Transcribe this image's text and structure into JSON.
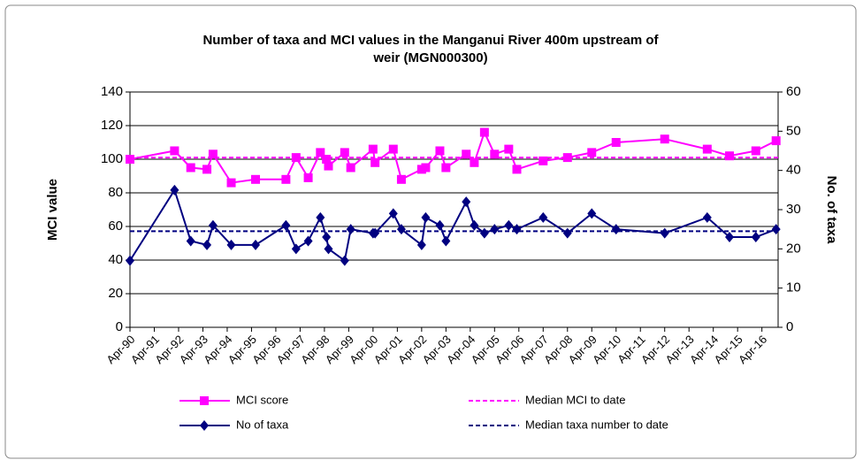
{
  "chart_data": {
    "type": "line",
    "title": [
      "Number of taxa and MCI values in the Manganui River 400m upstream of",
      "weir (MGN000300)"
    ],
    "y_label": "MCI value",
    "y2_label": "No. of taxa",
    "x": [
      "1990-04",
      "1992-02",
      "1992-10",
      "1993-06",
      "1993-09",
      "1994-06",
      "1995-06",
      "1996-09",
      "1997-02",
      "1997-08",
      "1998-02",
      "1998-05",
      "1998-06",
      "1999-02",
      "1999-05",
      "2000-04",
      "2000-05",
      "2001-02",
      "2001-06",
      "2002-04",
      "2002-06",
      "2003-01",
      "2003-04",
      "2004-02",
      "2004-06",
      "2004-11",
      "2005-04",
      "2005-11",
      "2006-03",
      "2007-04",
      "2008-04",
      "2009-04",
      "2010-04",
      "2012-04",
      "2014-01",
      "2014-12",
      "2016-01",
      "2016-11"
    ],
    "series": [
      {
        "name": "MCI score",
        "color": "#ff00ff",
        "marker": "square",
        "axis": "y",
        "values": [
          100,
          105,
          95,
          94,
          103,
          86,
          88,
          88,
          101,
          89,
          104,
          100,
          96,
          104,
          95,
          106,
          98,
          106,
          88,
          94,
          95,
          105,
          95,
          103,
          98,
          116,
          103,
          106,
          94,
          99,
          101,
          104,
          110,
          112,
          106,
          102,
          105,
          111
        ]
      },
      {
        "name": "No of taxa",
        "color": "#000080",
        "marker": "diamond",
        "axis": "y2",
        "values": [
          17,
          35,
          22,
          21,
          26,
          21,
          21,
          26,
          20,
          22,
          28,
          23,
          20,
          17,
          25,
          24,
          24,
          29,
          25,
          21,
          28,
          26,
          22,
          32,
          26,
          24,
          25,
          26,
          25,
          28,
          24,
          29,
          25,
          24,
          28,
          23,
          23,
          25
        ]
      }
    ],
    "medians": [
      {
        "name": "Median MCI to date",
        "color": "#ff00ff",
        "axis": "y",
        "value": 101
      },
      {
        "name": "Median taxa number to date",
        "color": "#000080",
        "axis": "y2",
        "value": 24.5
      }
    ],
    "xlim": [
      "1990-04",
      "2016-12"
    ],
    "xticks": [
      {
        "value": "1990-04",
        "label": "Apr-90"
      },
      {
        "value": "1991-04",
        "label": "Apr-91"
      },
      {
        "value": "1992-04",
        "label": "Apr-92"
      },
      {
        "value": "1993-04",
        "label": "Apr-93"
      },
      {
        "value": "1994-04",
        "label": "Apr-94"
      },
      {
        "value": "1995-04",
        "label": "Apr-95"
      },
      {
        "value": "1996-04",
        "label": "Apr-96"
      },
      {
        "value": "1997-04",
        "label": "Apr-97"
      },
      {
        "value": "1998-04",
        "label": "Apr-98"
      },
      {
        "value": "1999-04",
        "label": "Apr-99"
      },
      {
        "value": "2000-04",
        "label": "Apr-00"
      },
      {
        "value": "2001-04",
        "label": "Apr-01"
      },
      {
        "value": "2002-04",
        "label": "Apr-02"
      },
      {
        "value": "2003-04",
        "label": "Apr-03"
      },
      {
        "value": "2004-04",
        "label": "Apr-04"
      },
      {
        "value": "2005-04",
        "label": "Apr-05"
      },
      {
        "value": "2006-04",
        "label": "Apr-06"
      },
      {
        "value": "2007-04",
        "label": "Apr-07"
      },
      {
        "value": "2008-04",
        "label": "Apr-08"
      },
      {
        "value": "2009-04",
        "label": "Apr-09"
      },
      {
        "value": "2010-04",
        "label": "Apr-10"
      },
      {
        "value": "2011-04",
        "label": "Apr-11"
      },
      {
        "value": "2012-04",
        "label": "Apr-12"
      },
      {
        "value": "2013-04",
        "label": "Apr-13"
      },
      {
        "value": "2014-04",
        "label": "Apr-14"
      },
      {
        "value": "2015-04",
        "label": "Apr-15"
      },
      {
        "value": "2016-04",
        "label": "Apr-16"
      }
    ],
    "ylim": [
      0,
      140
    ],
    "yticks": [
      0,
      20,
      40,
      60,
      80,
      100,
      120,
      140
    ],
    "y2lim": [
      0,
      60
    ],
    "y2ticks": [
      0,
      10,
      20,
      30,
      40,
      50,
      60
    ],
    "grid": true,
    "legend": "bottom"
  }
}
